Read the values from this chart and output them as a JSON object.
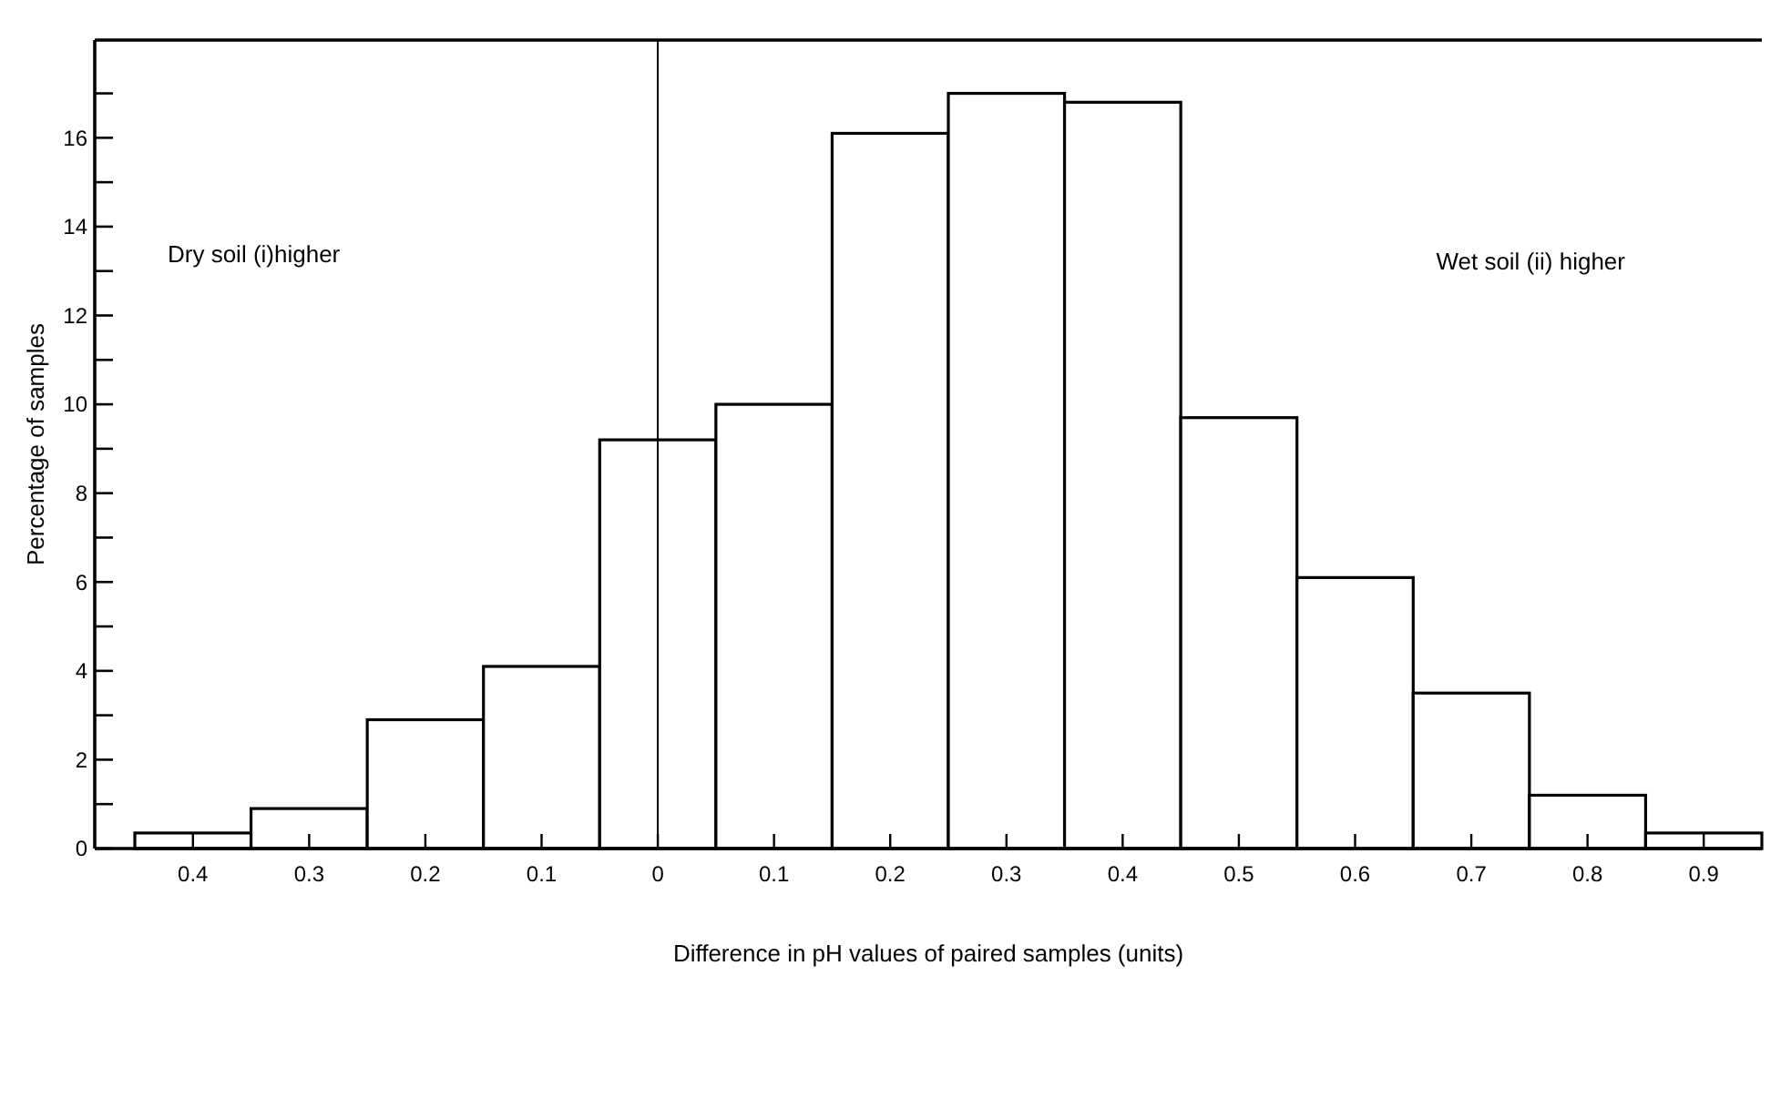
{
  "chart_data": {
    "type": "bar",
    "xlabel": "Difference in pH values of paired samples (units)",
    "ylabel": "Percentage of samples",
    "categories": [
      "0.4",
      "0.3",
      "0.2",
      "0.1",
      "0",
      "0.1",
      "0.2",
      "0.3",
      "0.4",
      "0.5",
      "0.6",
      "0.7",
      "0.8",
      "0.9"
    ],
    "values": [
      0.35,
      0.9,
      2.9,
      4.1,
      9.2,
      10.0,
      16.1,
      17.0,
      16.8,
      9.7,
      6.1,
      3.5,
      1.2,
      0.35
    ],
    "color": "#ffffff",
    "ylim": [
      0,
      18.2
    ],
    "yticks": [
      0,
      {
        "value": 1,
        "label": null
      },
      2,
      {
        "value": 3,
        "label": null
      },
      4,
      {
        "value": 5,
        "label": null
      },
      6,
      {
        "value": 7,
        "label": null
      },
      8,
      {
        "value": 9,
        "label": null
      },
      10,
      {
        "value": 11,
        "label": null
      },
      12,
      {
        "value": 13,
        "label": null
      },
      14,
      {
        "value": 15,
        "label": null
      },
      16,
      {
        "value": 17,
        "label": null
      }
    ],
    "ref_lines": [
      {
        "axis": "x",
        "value": "0",
        "color": "#000000"
      }
    ],
    "annotations": [
      "Dry soil (i)higher",
      "Wet soil (ii) higher"
    ],
    "grid": false
  }
}
